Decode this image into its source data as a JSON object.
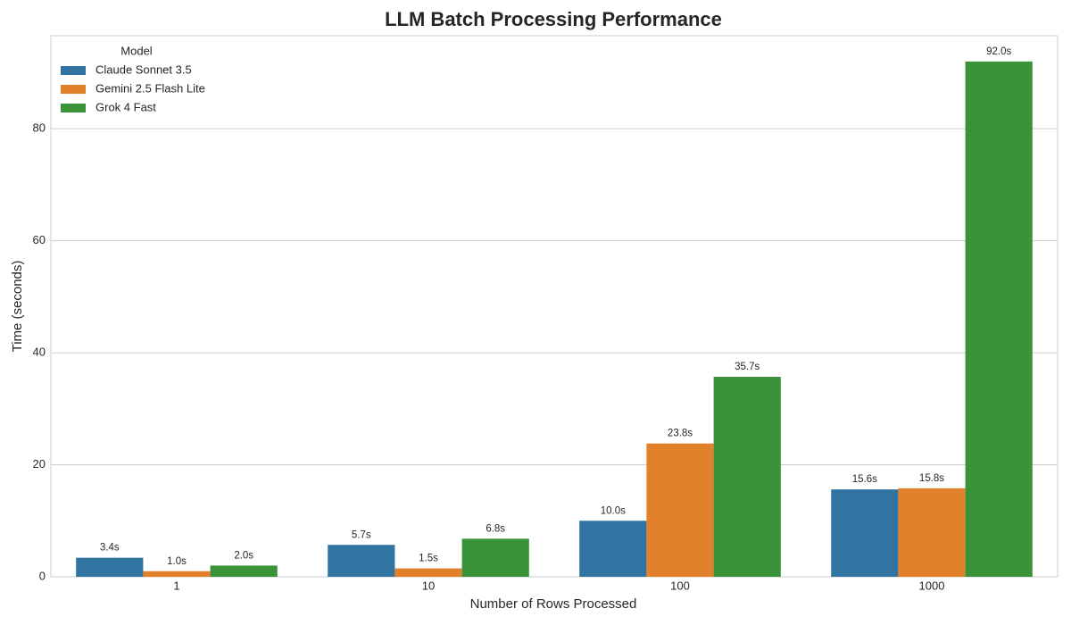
{
  "chart_data": {
    "type": "bar",
    "title": "LLM Batch Processing Performance",
    "x_label": "Number of Rows Processed",
    "y_label": "Time (seconds)",
    "categories": [
      "1",
      "10",
      "100",
      "1000"
    ],
    "legend_title": "Model",
    "legend_position": "upper left",
    "grid": true,
    "ylim": [
      0,
      96.6
    ],
    "yticks": [
      0,
      20,
      40,
      60,
      80
    ],
    "series": [
      {
        "name": "Claude Sonnet 3.5",
        "color": "#3274a1",
        "values": [
          3.4,
          5.7,
          10.0,
          15.6
        ],
        "value_labels": [
          "3.4s",
          "5.7s",
          "10.0s",
          "15.6s"
        ]
      },
      {
        "name": "Gemini 2.5 Flash Lite",
        "color": "#e1812c",
        "values": [
          1.0,
          1.5,
          23.8,
          15.8
        ],
        "value_labels": [
          "1.0s",
          "1.5s",
          "23.8s",
          "15.8s"
        ]
      },
      {
        "name": "Grok 4 Fast",
        "color": "#3a923a",
        "values": [
          2.0,
          6.8,
          35.7,
          92.0
        ],
        "value_labels": [
          "2.0s",
          "6.8s",
          "35.7s",
          "92.0s"
        ]
      }
    ]
  }
}
